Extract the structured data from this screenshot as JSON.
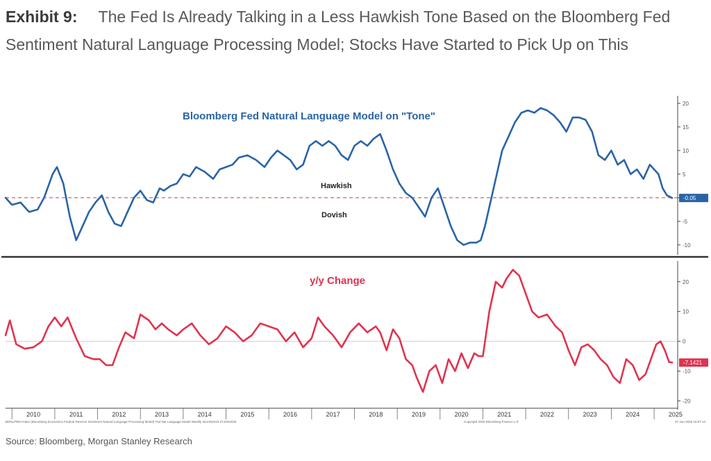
{
  "exhibit": {
    "label": "Exhibit 9:",
    "title": "The Fed Is Already Talking in a Less Hawkish Tone Based on the Bloomberg Fed Sentiment Natural Language Processing Model; Stocks Have Started to Pick Up on This"
  },
  "source": "Source: Bloomberg, Morgan Stanley Research",
  "colors": {
    "tone": "#2a64a6",
    "change": "#e0334f",
    "zero_line": "#d9534f"
  },
  "chart_data": [
    {
      "type": "line",
      "title": "Bloomberg Fed Natural Language Model on \"Tone\"",
      "annotations": [
        "Hawkish",
        "Dovish"
      ],
      "last_value_label": "-0.05",
      "x_ticks": [
        "2010",
        "2011",
        "2012",
        "2013",
        "2014",
        "2015",
        "2016",
        "2017",
        "2018",
        "2019",
        "2020",
        "2021",
        "2022",
        "2023",
        "2024",
        "2025"
      ],
      "y_ticks": [
        -10,
        -5,
        0,
        5,
        10,
        15,
        20
      ],
      "y_tick_labels": [
        "-10",
        "-5",
        "0",
        "5",
        "10",
        "15",
        "20"
      ],
      "ylim": [
        -11.5,
        21
      ],
      "xlim": [
        2009.85,
        2025.55
      ],
      "series": [
        {
          "x": [
            2009.85,
            2010.0,
            2010.2,
            2010.4,
            2010.6,
            2010.75,
            2010.85,
            2010.95,
            2011.05,
            2011.2,
            2011.35,
            2011.5,
            2011.65,
            2011.8,
            2011.95,
            2012.1,
            2012.25,
            2012.4,
            2012.55,
            2012.7,
            2012.85,
            2013.0,
            2013.15,
            2013.3,
            2013.45,
            2013.55,
            2013.7,
            2013.85,
            2014.0,
            2014.15,
            2014.3,
            2014.5,
            2014.7,
            2014.85,
            2015.0,
            2015.15,
            2015.3,
            2015.5,
            2015.7,
            2015.9,
            2016.05,
            2016.2,
            2016.35,
            2016.5,
            2016.65,
            2016.8,
            2016.95,
            2017.1,
            2017.25,
            2017.4,
            2017.55,
            2017.7,
            2017.85,
            2018.0,
            2018.15,
            2018.3,
            2018.45,
            2018.6,
            2018.75,
            2018.9,
            2019.05,
            2019.2,
            2019.35,
            2019.5,
            2019.65,
            2019.8,
            2019.95,
            2020.1,
            2020.25,
            2020.4,
            2020.55,
            2020.7,
            2020.85,
            2020.95,
            2021.05,
            2021.15,
            2021.3,
            2021.45,
            2021.6,
            2021.75,
            2021.9,
            2022.05,
            2022.2,
            2022.35,
            2022.5,
            2022.65,
            2022.8,
            2022.95,
            2023.1,
            2023.25,
            2023.4,
            2023.55,
            2023.7,
            2023.85,
            2024.0,
            2024.15,
            2024.3,
            2024.45,
            2024.6,
            2024.75,
            2024.9,
            2025.0,
            2025.1,
            2025.2,
            2025.3,
            2025.42
          ],
          "y": [
            0,
            -1.5,
            -1,
            -3,
            -2.5,
            0,
            2.5,
            5,
            6.5,
            3,
            -4,
            -9,
            -6,
            -3,
            -1,
            0.5,
            -3,
            -5.5,
            -6,
            -3,
            0,
            1.5,
            -0.5,
            -1,
            2,
            1.5,
            2.5,
            3,
            5,
            4.5,
            6.5,
            5.5,
            4,
            6,
            6.5,
            7,
            8.5,
            9,
            8,
            6.5,
            8.5,
            10,
            9,
            8,
            6,
            7,
            11,
            12,
            11,
            12,
            11,
            9,
            8,
            11,
            12,
            11,
            12.5,
            13.5,
            10,
            6,
            3,
            1,
            0,
            -2,
            -4,
            0,
            2,
            -2,
            -6,
            -9,
            -10,
            -9.5,
            -9.5,
            -9,
            -6,
            -2,
            4,
            10,
            13,
            16,
            18,
            18.5,
            18,
            19,
            18.5,
            17.5,
            16,
            14,
            17,
            17,
            16.5,
            14,
            9,
            8,
            10,
            7,
            8,
            5,
            6,
            4,
            7,
            6,
            5,
            2,
            0.5,
            -0.05
          ]
        }
      ]
    },
    {
      "type": "line",
      "title": "y/y Change",
      "last_value_label": "-7.1421",
      "x_ticks": [
        "2010",
        "2011",
        "2012",
        "2013",
        "2014",
        "2015",
        "2016",
        "2017",
        "2018",
        "2019",
        "2020",
        "2021",
        "2022",
        "2023",
        "2024",
        "2025"
      ],
      "y_ticks": [
        -20,
        -10,
        0,
        10,
        20
      ],
      "y_tick_labels": [
        "-20",
        "-10",
        "0",
        "10",
        "20"
      ],
      "ylim": [
        -22,
        26
      ],
      "xlim": [
        2009.85,
        2025.55
      ],
      "series": [
        {
          "x": [
            2009.85,
            2009.95,
            2010.1,
            2010.3,
            2010.5,
            2010.7,
            2010.85,
            2011.0,
            2011.15,
            2011.3,
            2011.5,
            2011.7,
            2011.9,
            2012.05,
            2012.2,
            2012.35,
            2012.5,
            2012.65,
            2012.85,
            2013.0,
            2013.2,
            2013.35,
            2013.5,
            2013.65,
            2013.85,
            2014.0,
            2014.2,
            2014.4,
            2014.6,
            2014.8,
            2015.0,
            2015.2,
            2015.4,
            2015.6,
            2015.8,
            2016.0,
            2016.2,
            2016.4,
            2016.6,
            2016.8,
            2017.0,
            2017.15,
            2017.3,
            2017.5,
            2017.7,
            2017.9,
            2018.1,
            2018.3,
            2018.5,
            2018.6,
            2018.75,
            2018.9,
            2019.05,
            2019.2,
            2019.35,
            2019.45,
            2019.6,
            2019.75,
            2019.9,
            2020.05,
            2020.2,
            2020.35,
            2020.5,
            2020.65,
            2020.8,
            2020.9,
            2021.0,
            2021.15,
            2021.3,
            2021.45,
            2021.55,
            2021.7,
            2021.85,
            2022.0,
            2022.15,
            2022.3,
            2022.5,
            2022.7,
            2022.85,
            2023.0,
            2023.15,
            2023.3,
            2023.45,
            2023.6,
            2023.75,
            2023.9,
            2024.05,
            2024.2,
            2024.35,
            2024.5,
            2024.65,
            2024.8,
            2024.95,
            2025.05,
            2025.15,
            2025.25,
            2025.35,
            2025.42
          ],
          "y": [
            2,
            7,
            -1,
            -2.5,
            -2,
            0,
            5,
            8,
            5,
            8,
            1,
            -5,
            -6,
            -6,
            -8,
            -8,
            -2,
            3,
            1,
            9,
            7,
            4,
            6,
            4,
            2,
            4,
            6,
            2,
            -1,
            1,
            5,
            3,
            0,
            2,
            6,
            5,
            4,
            0,
            3,
            -2,
            1,
            8,
            5,
            2,
            -2,
            3,
            6,
            3,
            5,
            3,
            -3,
            4,
            1,
            -6,
            -8,
            -12,
            -17,
            -10,
            -8,
            -14,
            -6,
            -10,
            -4,
            -9,
            -4,
            -5,
            -5,
            10,
            20,
            18,
            21,
            24,
            22,
            16,
            10,
            8,
            9,
            5,
            3,
            -3,
            -8,
            -2,
            -1,
            -3,
            -6,
            -8,
            -12,
            -14,
            -6,
            -8,
            -13,
            -11,
            -5,
            -1,
            0,
            -3,
            -7,
            -7.1421
          ]
        }
      ]
    }
  ],
  "footer_left": "BDNLPRDI Index (Bloomberg Economics Federal Reserve Sentiment Natural Language Processing Model) Fed Nat Language Model Weekly 29JAN2010-27JUN2025",
  "footer_right": "Copyright 2025 Bloomberg Finance L.P.",
  "footer_timestamp": "27-Jun-2025 15:07:13"
}
